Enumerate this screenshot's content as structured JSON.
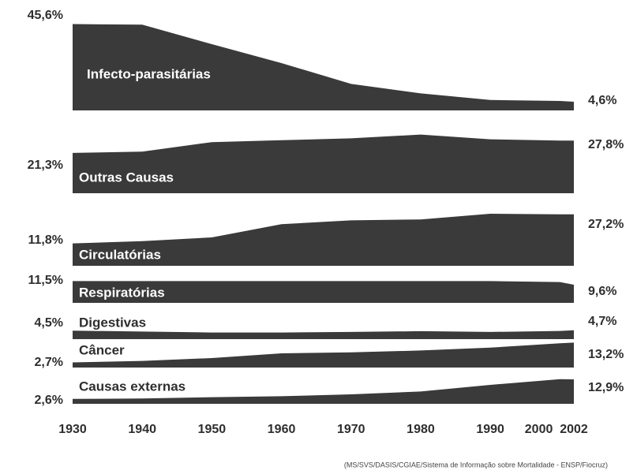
{
  "chart_data": {
    "type": "area",
    "source": "(MS/SVS/DASIS/CGIAE/Sistema de Informação sobre Mortalidade - ENSP/Fiocruz)",
    "x": [
      1930,
      1940,
      1950,
      1960,
      1970,
      1980,
      1990,
      2000,
      2002
    ],
    "xlim": [
      1930,
      2002
    ],
    "xticks": [
      1930,
      1940,
      1950,
      1960,
      1970,
      1980,
      1990,
      2000,
      2002
    ],
    "color": "#3a3a3a",
    "series": [
      {
        "name": "Infecto-parasitárias",
        "values": [
          45.6,
          45.3,
          35,
          25,
          14,
          9,
          5.5,
          5,
          4.6
        ],
        "value_labels": [
          "45,6%",
          null,
          null,
          null,
          null,
          null,
          null,
          null,
          "4,6%"
        ]
      },
      {
        "name": "Outras Causas",
        "values": [
          21.3,
          22,
          27,
          28,
          29,
          31,
          28.5,
          27.8,
          27.8
        ],
        "value_labels": [
          "21,3%",
          null,
          null,
          null,
          null,
          null,
          null,
          null,
          "27,8%"
        ]
      },
      {
        "name": "Circulatórias",
        "values": [
          11.8,
          13,
          15,
          22,
          24,
          24.5,
          27.5,
          27.2,
          27.2
        ],
        "value_labels": [
          "11,8%",
          null,
          null,
          null,
          null,
          null,
          null,
          null,
          "27,2%"
        ]
      },
      {
        "name": "Respiratórias",
        "values": [
          11.5,
          11.5,
          11.5,
          11.5,
          11.5,
          11.5,
          11.5,
          11,
          9.6
        ],
        "value_labels": [
          "11,5%",
          null,
          null,
          null,
          null,
          null,
          null,
          null,
          "9,6%"
        ]
      },
      {
        "name": "Digestivas",
        "values": [
          4.5,
          4,
          3.5,
          3.5,
          3.8,
          4.2,
          3.8,
          4.3,
          4.7
        ],
        "value_labels": [
          "4,5%",
          null,
          null,
          null,
          null,
          null,
          null,
          null,
          "4,7%"
        ]
      },
      {
        "name": "Câncer",
        "values": [
          2.7,
          3.5,
          5,
          7.5,
          8,
          9,
          10.5,
          12.8,
          13.2
        ],
        "value_labels": [
          "2,7%",
          null,
          null,
          null,
          null,
          null,
          null,
          null,
          "13,2%"
        ]
      },
      {
        "name": "Causas externas",
        "values": [
          2.6,
          2.8,
          3.5,
          4,
          5,
          6.5,
          10,
          13,
          12.9
        ],
        "value_labels": [
          "2,6%",
          null,
          null,
          null,
          null,
          null,
          null,
          null,
          "12,9%"
        ]
      }
    ]
  }
}
